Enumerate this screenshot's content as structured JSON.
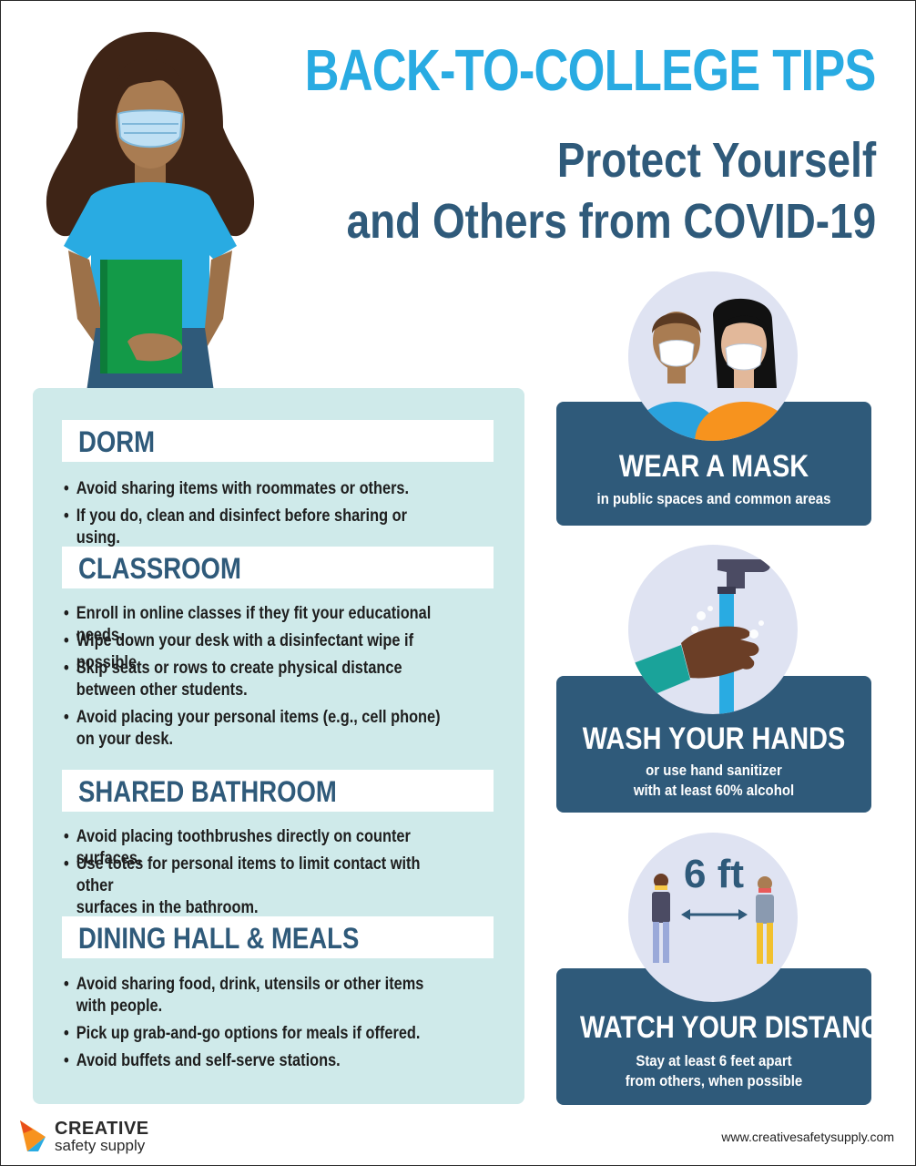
{
  "title": "BACK-TO-COLLEGE TIPS",
  "subtitle_line1": "Protect Yourself",
  "subtitle_line2": "and Others from COVID-19",
  "sections": {
    "dorm": {
      "heading": "DORM",
      "tips": [
        "Avoid sharing items with roommates or others.",
        "If you do, clean and disinfect before sharing or using."
      ]
    },
    "classroom": {
      "heading": "CLASSROOM",
      "tips": [
        "Enroll in online classes if they fit your educational needs.",
        "Wipe down your desk with a disinfectant wipe if possible.",
        "Skip seats or rows to create physical distance\nbetween other students.",
        "Avoid placing your personal items (e.g., cell phone)\non your desk."
      ]
    },
    "bathroom": {
      "heading": "SHARED BATHROOM",
      "tips": [
        "Avoid placing toothbrushes directly on counter surfaces.",
        "Use totes for personal items to limit contact with other\nsurfaces in the bathroom."
      ]
    },
    "dining": {
      "heading": "DINING HALL & MEALS",
      "tips": [
        "Avoid sharing food, drink, utensils or other items\nwith people.",
        "Pick up grab-and-go options for meals if offered.",
        "Avoid buffets and self-serve stations."
      ]
    }
  },
  "bullet": "•",
  "cards": {
    "mask": {
      "title": "WEAR A MASK",
      "subtitle": "in public spaces and common areas"
    },
    "hands": {
      "title": "WASH YOUR HANDS",
      "subtitle_line1": "or use hand sanitizer",
      "subtitle_line2": "with at least 60% alcohol"
    },
    "distance": {
      "title": "WATCH YOUR DISTANCE",
      "subtitle_line1": "Stay at least 6 feet apart",
      "subtitle_line2": "from others, when possible",
      "distance_label": "6 ft"
    }
  },
  "icons": {
    "girl": "student-illustration",
    "mask": "masked-people-icon",
    "hands": "hand-washing-icon",
    "distance": "social-distance-icon",
    "logo": "creative-safety-supply-logo"
  },
  "colors": {
    "title": "#29abe2",
    "subtitle": "#2f5a7a",
    "panel": "#cfeaea",
    "card": "#2f5a7a",
    "circle": "#dfe3f2"
  },
  "footer": {
    "brand_line1": "CREATIVE",
    "brand_line2": "safety supply",
    "website": "www.creativesafetysupply.com"
  }
}
